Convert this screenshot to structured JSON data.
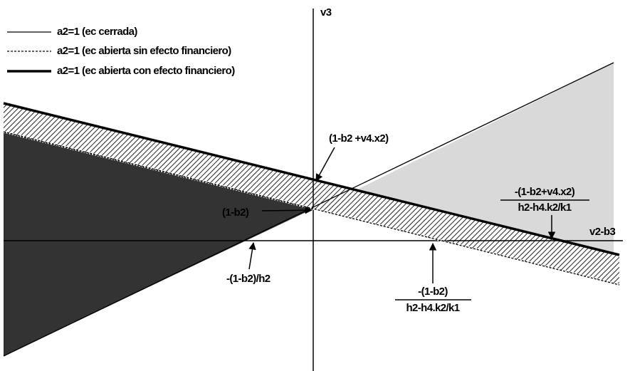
{
  "legend": {
    "items": [
      {
        "label": "a2=1 (ec cerrada)",
        "style": "solid"
      },
      {
        "label": "a2=1 (ec abierta sin efecto financiero)",
        "style": "dotted"
      },
      {
        "label": "a2=1 (ec abierta con efecto financiero)",
        "style": "thick"
      }
    ]
  },
  "axes": {
    "y_label": "v3",
    "x_label": "v2-b3"
  },
  "annotations": {
    "intercept_open_financial": "(1-b2 +v4.x2)",
    "intercept_closed": "(1-b2)",
    "x_intercept_closed": "-(1-b2)/h2",
    "x_intercept_financial": {
      "numerator": "-(1-b2+v4.x2)",
      "denominator": "h2-h4.k2/k1"
    },
    "x_intercept_open": {
      "numerator": "-(1-b2)",
      "denominator": "h2-h4.k2/k1"
    }
  }
}
